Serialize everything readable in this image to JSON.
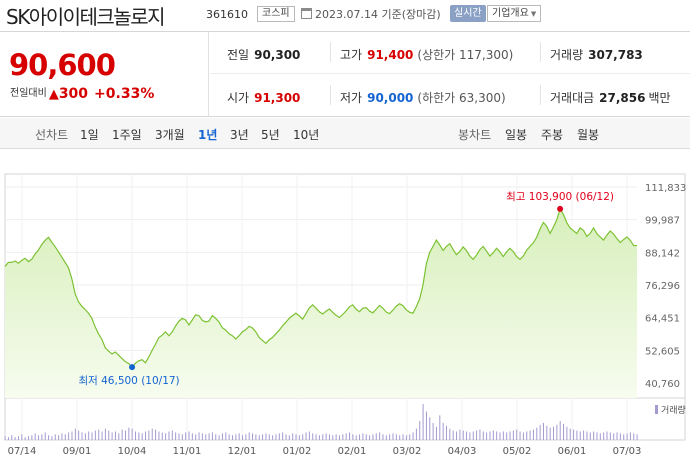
{
  "header": {
    "stock_name": "SK아이이테크놀로지",
    "stock_code": "361610",
    "market": "코스피",
    "as_of": "2023.07.14 기준(장마감)",
    "realtime_label": "실시간",
    "company_label": "기업개요"
  },
  "price": {
    "current": "90,600",
    "change_label": "전일대비",
    "change_arrow": "▲",
    "change_value": "300",
    "change_pct": "+0.33%"
  },
  "stats": {
    "prev_close": {
      "label": "전일",
      "value": "90,300"
    },
    "high": {
      "label": "고가",
      "value": "91,400",
      "extra": "(상한가 117,300)"
    },
    "volume": {
      "label": "거래량",
      "value": "307,783"
    },
    "open": {
      "label": "시가",
      "value": "91,300"
    },
    "low": {
      "label": "저가",
      "value": "90,000",
      "extra": "(하한가 63,300)"
    },
    "amount": {
      "label": "거래대금",
      "value": "27,856",
      "unit": "백만"
    }
  },
  "tabs": {
    "line_group": "선차트",
    "line": [
      "1일",
      "1주일",
      "3개월",
      "1년",
      "3년",
      "5년",
      "10년"
    ],
    "candle_group": "봉차트",
    "candle": [
      "일봉",
      "주봉",
      "월봉"
    ],
    "active": "1년"
  },
  "chart_data": {
    "type": "area",
    "x_tick_labels": [
      "07/14",
      "09/01",
      "10/04",
      "11/01",
      "12/01",
      "01/02",
      "02/01",
      "03/02",
      "04/03",
      "05/02",
      "06/01",
      "07/03"
    ],
    "y_tick_labels": [
      "111,833",
      "99,987",
      "88,142",
      "76,296",
      "64,451",
      "52,605",
      "40,760"
    ],
    "ylim": [
      40760,
      111833
    ],
    "high_annotation": "최고 103,900 (06/12)",
    "low_annotation": "최저 46,500 (10/17)",
    "volume_legend": "거래량",
    "colors": {
      "line": "#7cc232",
      "fill_top": "#d7efbb",
      "fill_bottom": "#f7fcef",
      "high": "#e0001b",
      "low": "#1464d2"
    },
    "price_series": [
      83000,
      84500,
      84500,
      85000,
      84200,
      85200,
      86000,
      84800,
      85600,
      87500,
      89000,
      91000,
      92500,
      93600,
      91800,
      90200,
      88300,
      86400,
      84500,
      82500,
      78500,
      73000,
      70200,
      68500,
      67400,
      66000,
      64200,
      61000,
      58500,
      56500,
      53500,
      52300,
      51300,
      52000,
      50800,
      49600,
      48500,
      47800,
      46500,
      47900,
      48800,
      49200,
      48100,
      50200,
      52600,
      54800,
      57200,
      58100,
      59300,
      57900,
      59300,
      61400,
      63200,
      64200,
      63600,
      61800,
      63600,
      65500,
      65200,
      63500,
      62900,
      63200,
      65200,
      64200,
      62900,
      60800,
      59900,
      58600,
      57900,
      56700,
      57900,
      59300,
      60100,
      61300,
      60700,
      59300,
      57300,
      56200,
      55100,
      56400,
      57300,
      58600,
      59900,
      61500,
      62800,
      64200,
      65200,
      66100,
      65100,
      63900,
      65900,
      68000,
      69100,
      67900,
      66600,
      65800,
      66800,
      67600,
      66400,
      65300,
      64500,
      65600,
      66900,
      68400,
      69100,
      67500,
      66600,
      67900,
      68100,
      66800,
      66200,
      67500,
      68900,
      67900,
      66500,
      65900,
      67200,
      68600,
      69500,
      68800,
      67300,
      66400,
      66100,
      68400,
      71200,
      76300,
      84000,
      88100,
      90300,
      92600,
      90800,
      88800,
      90300,
      91300,
      89200,
      87300,
      88400,
      90100,
      88800,
      86800,
      85600,
      87100,
      89100,
      90300,
      88600,
      86800,
      88000,
      89600,
      88300,
      86600,
      88300,
      89600,
      88400,
      86600,
      85600,
      86800,
      88900,
      90300,
      91600,
      93600,
      96600,
      99000,
      97600,
      95000,
      97300,
      99900,
      103900,
      101900,
      98900,
      97000,
      96000,
      95000,
      97000,
      96100,
      93900,
      95000,
      97000,
      94900,
      93700,
      92600,
      94400,
      95900,
      94800,
      93100,
      91700,
      92800,
      93700,
      92500,
      90600,
      90600
    ],
    "volume_series": [
      4,
      3,
      5,
      3,
      4,
      6,
      3,
      4,
      5,
      7,
      5,
      6,
      8,
      5,
      4,
      6,
      5,
      7,
      6,
      8,
      9,
      12,
      10,
      8,
      7,
      9,
      8,
      10,
      11,
      9,
      12,
      10,
      8,
      9,
      7,
      11,
      10,
      13,
      12,
      9,
      8,
      7,
      9,
      10,
      12,
      11,
      9,
      8,
      7,
      9,
      10,
      8,
      7,
      6,
      8,
      9,
      7,
      6,
      8,
      7,
      6,
      7,
      8,
      6,
      5,
      7,
      8,
      6,
      5,
      6,
      7,
      5,
      6,
      8,
      7,
      6,
      5,
      6,
      7,
      6,
      5,
      6,
      7,
      8,
      6,
      5,
      7,
      6,
      5,
      6,
      8,
      9,
      7,
      6,
      5,
      6,
      7,
      6,
      5,
      6,
      5,
      6,
      7,
      8,
      6,
      5,
      6,
      7,
      6,
      5,
      6,
      7,
      8,
      6,
      5,
      6,
      7,
      6,
      5,
      6,
      5,
      6,
      8,
      12,
      20,
      38,
      30,
      24,
      18,
      14,
      26,
      18,
      15,
      12,
      10,
      9,
      11,
      10,
      9,
      8,
      9,
      10,
      11,
      9,
      8,
      9,
      10,
      9,
      8,
      9,
      8,
      9,
      10,
      11,
      9,
      8,
      9,
      10,
      11,
      13,
      16,
      18,
      15,
      13,
      14,
      16,
      20,
      17,
      14,
      12,
      11,
      10,
      9,
      10,
      9,
      8,
      9,
      8,
      7,
      8,
      9,
      8,
      7,
      8,
      7,
      6,
      7,
      8,
      7,
      6
    ]
  }
}
